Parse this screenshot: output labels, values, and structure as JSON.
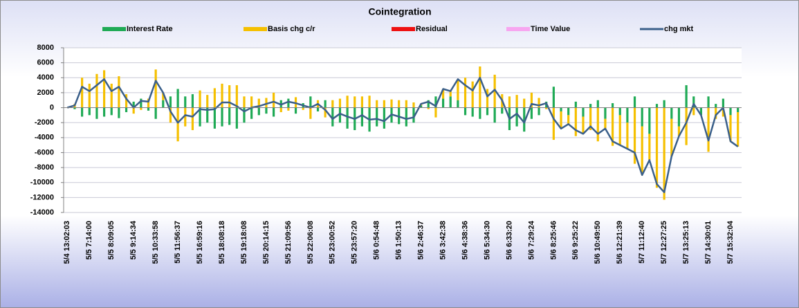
{
  "chart_data": {
    "type": "bar",
    "title": "Cointegration",
    "ylim": [
      -14000,
      8000
    ],
    "yticks": [
      -14000,
      -12000,
      -10000,
      -8000,
      -6000,
      -4000,
      -2000,
      0,
      2000,
      4000,
      6000,
      8000
    ],
    "grid": true,
    "legend": "top",
    "categories": [
      "5/4 13:02:03",
      null,
      null,
      "5/5 7:14:00",
      null,
      null,
      "5/5 8:09:05",
      null,
      null,
      "5/5 9:14:34",
      null,
      null,
      "5/5 10:33:58",
      null,
      null,
      "5/5 11:56:37",
      null,
      null,
      "5/5 16:59:16",
      null,
      null,
      "5/5 18:08:18",
      null,
      null,
      "5/5 19:18:08",
      null,
      null,
      "5/5 20:14:15",
      null,
      null,
      "5/5 21:09:56",
      null,
      null,
      "5/5 22:06:08",
      null,
      null,
      "5/5 23:00:52",
      null,
      null,
      "5/5 23:57:20",
      null,
      null,
      "5/6 0:54:48",
      null,
      null,
      "5/6 1:50:13",
      null,
      null,
      "5/6 2:46:37",
      null,
      null,
      "5/6 3:42:38",
      null,
      null,
      "5/6 4:38:36",
      null,
      null,
      "5/6 5:34:30",
      null,
      null,
      "5/6 6:33:20",
      null,
      null,
      "5/6 7:29:24",
      null,
      null,
      "5/6 8:25:46",
      null,
      null,
      "5/6 9:25:22",
      null,
      null,
      "5/6 10:49:50",
      null,
      null,
      "5/6 12:21:39",
      null,
      null,
      "5/7 11:12:40",
      null,
      null,
      "5/7 12:27:25",
      null,
      null,
      "5/7 13:25:13",
      null,
      null,
      "5/7 14:30:01",
      null,
      null,
      "5/7 15:32:04",
      null
    ],
    "series": [
      {
        "name": "Interest Rate",
        "type": "bar",
        "color": "#1faa55",
        "values": [
          0,
          -200,
          -1200,
          -1000,
          -1500,
          -1200,
          -1000,
          -1400,
          -600,
          800,
          1200,
          -400,
          -1500,
          1000,
          1500,
          2500,
          1500,
          1800,
          -2500,
          -2000,
          -2800,
          -2500,
          -2300,
          -2800,
          -2000,
          -1500,
          -1000,
          -800,
          -1200,
          1000,
          1200,
          -800,
          600,
          1500,
          -500,
          1000,
          -2500,
          -2000,
          -2800,
          -3000,
          -2500,
          -3200,
          -2500,
          -2800,
          -2000,
          -2200,
          -2500,
          -2000,
          300,
          1000,
          1500,
          1200,
          1500,
          1000,
          -1000,
          -1200,
          -1500,
          -1000,
          -2000,
          -800,
          -3000,
          -2500,
          -3200,
          -1500,
          -1000,
          800,
          2800,
          -500,
          -1000,
          800,
          -1200,
          500,
          1000,
          -1500,
          600,
          -1000,
          -2000,
          1500,
          -2500,
          -3500,
          500,
          1000,
          -1500,
          -2500,
          3000,
          1500,
          -1000,
          1500,
          500,
          1200,
          -1000,
          -600
        ]
      },
      {
        "name": "Basis chg c/r",
        "type": "bar",
        "color": "#f5c000",
        "values": [
          0,
          500,
          4000,
          3200,
          4500,
          5000,
          3200,
          4200,
          1800,
          -800,
          -300,
          1200,
          5100,
          1000,
          -2000,
          -4500,
          -2500,
          -3000,
          2300,
          1700,
          2600,
          3200,
          3000,
          3000,
          1500,
          1500,
          1200,
          1300,
          2000,
          -600,
          -400,
          1400,
          -300,
          -1500,
          1000,
          -1300,
          1000,
          1200,
          1600,
          1500,
          1500,
          1600,
          1000,
          1000,
          1100,
          1000,
          1000,
          700,
          200,
          -200,
          -1300,
          1300,
          700,
          2800,
          4000,
          3500,
          5500,
          2500,
          4400,
          1800,
          1500,
          1700,
          1200,
          2000,
          1300,
          -200,
          -4300,
          -2300,
          -1200,
          -3800,
          -2300,
          -3000,
          -4500,
          -1300,
          -5100,
          -4000,
          -3500,
          -7500,
          -6500,
          -3500,
          -10700,
          -12300,
          -5000,
          -1300,
          -5000,
          -1000,
          0,
          -5900,
          -1500,
          -1200,
          -3500,
          -4600
        ]
      },
      {
        "name": "Residual",
        "type": "bar",
        "color": "#ee1111",
        "values": [
          0,
          0,
          0,
          0,
          0,
          0,
          0,
          0,
          0,
          0,
          0,
          0,
          0,
          0,
          0,
          0,
          0,
          0,
          0,
          0,
          0,
          0,
          0,
          0,
          0,
          0,
          0,
          0,
          0,
          0,
          0,
          0,
          0,
          0,
          0,
          0,
          0,
          0,
          0,
          0,
          0,
          0,
          0,
          0,
          0,
          0,
          0,
          0,
          0,
          0,
          0,
          0,
          0,
          0,
          0,
          0,
          0,
          0,
          0,
          0,
          0,
          0,
          0,
          0,
          0,
          0,
          0,
          0,
          0,
          0,
          0,
          0,
          0,
          0,
          0,
          0,
          0,
          0,
          0,
          0,
          0,
          0,
          0,
          0,
          0,
          0,
          0,
          0,
          0,
          0,
          0,
          0
        ]
      },
      {
        "name": "Time Value",
        "type": "bar",
        "color": "#f7a6f0",
        "values": [
          0,
          0,
          0,
          0,
          0,
          0,
          0,
          0,
          0,
          0,
          0,
          0,
          0,
          0,
          0,
          0,
          0,
          0,
          0,
          0,
          0,
          0,
          0,
          0,
          0,
          0,
          0,
          0,
          0,
          0,
          0,
          0,
          0,
          0,
          0,
          0,
          0,
          0,
          0,
          0,
          0,
          0,
          0,
          0,
          0,
          0,
          0,
          0,
          0,
          0,
          0,
          0,
          0,
          0,
          0,
          0,
          0,
          0,
          0,
          0,
          0,
          0,
          0,
          0,
          0,
          0,
          0,
          0,
          0,
          0,
          0,
          0,
          0,
          0,
          0,
          0,
          0,
          0,
          0,
          0,
          0,
          0,
          0,
          0,
          0,
          0,
          0,
          0,
          0,
          0,
          0,
          0
        ]
      },
      {
        "name": "chg mkt",
        "type": "line",
        "color": "#3a5f8a",
        "values": [
          0,
          300,
          2800,
          2200,
          3000,
          3800,
          2200,
          2800,
          1200,
          0,
          900,
          800,
          3600,
          2000,
          -500,
          -2000,
          -1000,
          -1200,
          -200,
          -300,
          -200,
          700,
          700,
          200,
          -500,
          0,
          200,
          500,
          800,
          400,
          800,
          600,
          300,
          0,
          500,
          -300,
          -1500,
          -800,
          -1200,
          -1500,
          -1000,
          -1600,
          -1500,
          -1800,
          -900,
          -1200,
          -1500,
          -1300,
          500,
          800,
          200,
          2500,
          2200,
          3800,
          3000,
          2300,
          4000,
          1500,
          2400,
          1000,
          -1500,
          -800,
          -2000,
          500,
          300,
          600,
          -1500,
          -2800,
          -2200,
          -3000,
          -3500,
          -2500,
          -3500,
          -2800,
          -4500,
          -5000,
          -5500,
          -6000,
          -9000,
          -7000,
          -10200,
          -11300,
          -6500,
          -3800,
          -2000,
          500,
          -1000,
          -4400,
          -1000,
          0,
          -4500,
          -5200
        ]
      }
    ]
  }
}
